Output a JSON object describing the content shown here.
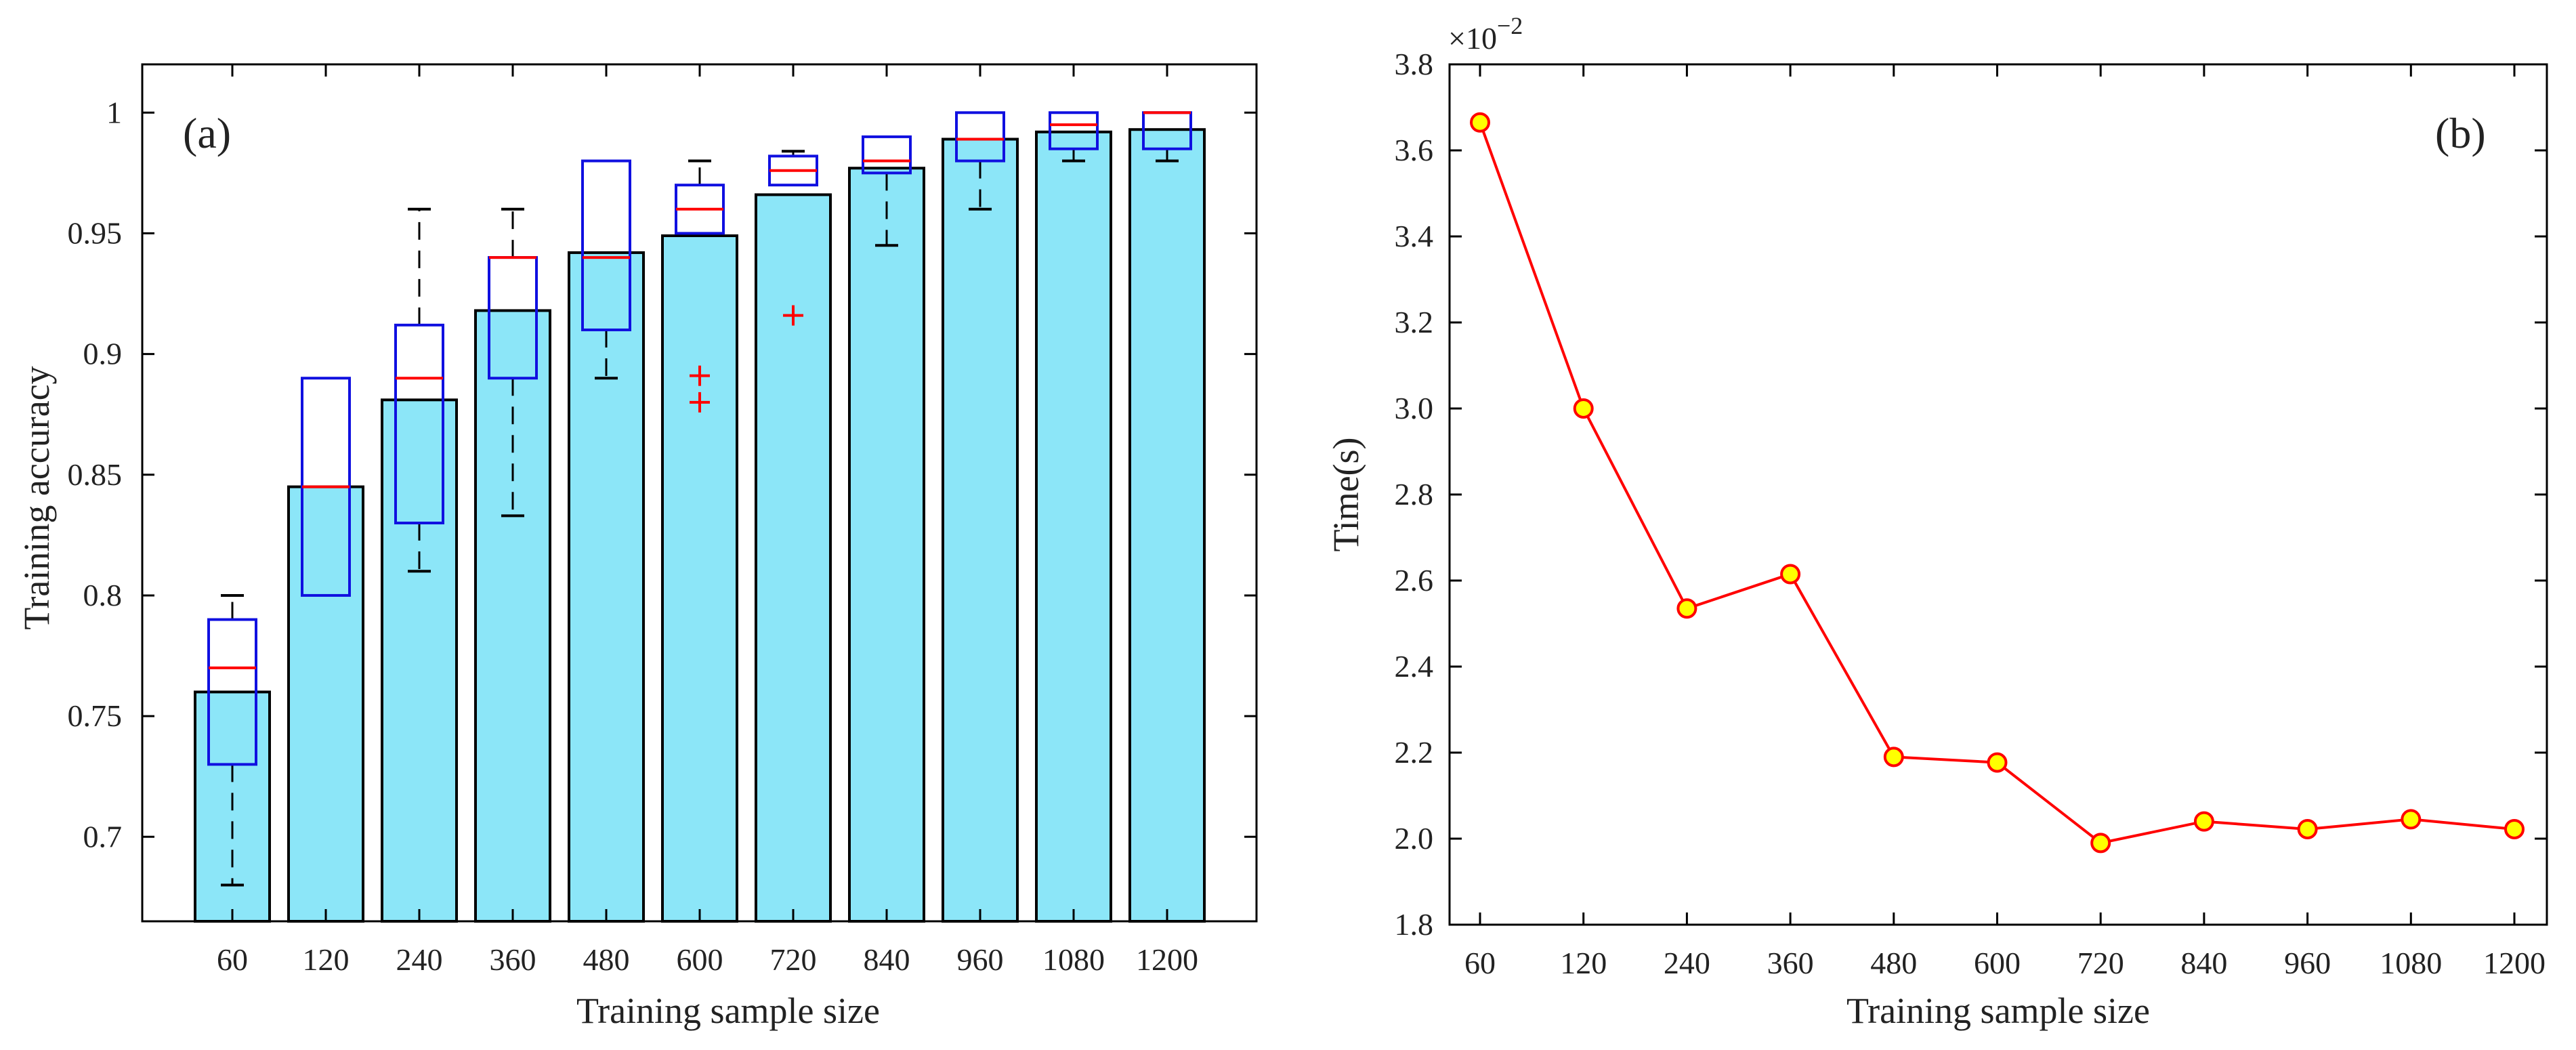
{
  "chart_data": [
    {
      "type": "bar+boxplot",
      "panel_label": "(a)",
      "xlabel": "Training sample size",
      "ylabel": "Training accuracy",
      "categories": [
        "60",
        "120",
        "240",
        "360",
        "480",
        "600",
        "720",
        "840",
        "960",
        "1080",
        "1200"
      ],
      "ylim": [
        0.665,
        1.02
      ],
      "yticks": [
        0.7,
        0.75,
        0.8,
        0.85,
        0.9,
        0.95,
        1
      ],
      "ytick_labels": [
        "0.7",
        "0.75",
        "0.8",
        "0.85",
        "0.9",
        "0.95",
        "1"
      ],
      "bar_values": [
        0.76,
        0.845,
        0.881,
        0.918,
        0.942,
        0.949,
        0.966,
        0.977,
        0.989,
        0.992,
        0.993
      ],
      "boxes": [
        {
          "q1": 0.73,
          "median": 0.77,
          "q3": 0.79,
          "whisker_low": 0.68,
          "whisker_high": 0.8,
          "outliers": []
        },
        {
          "q1": 0.8,
          "median": 0.845,
          "q3": 0.89,
          "whisker_low": 0.8,
          "whisker_high": 0.89,
          "outliers": []
        },
        {
          "q1": 0.83,
          "median": 0.89,
          "q3": 0.912,
          "whisker_low": 0.81,
          "whisker_high": 0.96,
          "outliers": []
        },
        {
          "q1": 0.89,
          "median": 0.94,
          "q3": 0.94,
          "whisker_low": 0.833,
          "whisker_high": 0.96,
          "outliers": []
        },
        {
          "q1": 0.91,
          "median": 0.94,
          "q3": 0.98,
          "whisker_low": 0.89,
          "whisker_high": 0.98,
          "outliers": []
        },
        {
          "q1": 0.95,
          "median": 0.96,
          "q3": 0.97,
          "whisker_low": 0.95,
          "whisker_high": 0.98,
          "outliers": [
            0.891,
            0.88
          ]
        },
        {
          "q1": 0.97,
          "median": 0.976,
          "q3": 0.982,
          "whisker_low": 0.97,
          "whisker_high": 0.984,
          "outliers": [
            0.916
          ]
        },
        {
          "q1": 0.975,
          "median": 0.98,
          "q3": 0.99,
          "whisker_low": 0.945,
          "whisker_high": 0.99,
          "outliers": []
        },
        {
          "q1": 0.98,
          "median": 0.989,
          "q3": 1.0,
          "whisker_low": 0.96,
          "whisker_high": 1.0,
          "outliers": []
        },
        {
          "q1": 0.985,
          "median": 0.995,
          "q3": 1.0,
          "whisker_low": 0.98,
          "whisker_high": 1.0,
          "outliers": []
        },
        {
          "q1": 0.985,
          "median": 1.0,
          "q3": 1.0,
          "whisker_low": 0.98,
          "whisker_high": 1.0,
          "outliers": []
        }
      ],
      "colors": {
        "bar_fill": "#8ce6f8",
        "bar_edge": "#000000",
        "box": "#1010e0",
        "median": "#ff0000",
        "whisker": "#000000",
        "outlier": "#ff0000"
      }
    },
    {
      "type": "line",
      "panel_label": "(b)",
      "xlabel": "Training sample size",
      "ylabel": "Time(s)",
      "exponent_label": "×10",
      "exponent_power": "−2",
      "categories": [
        "60",
        "120",
        "240",
        "360",
        "480",
        "600",
        "720",
        "840",
        "960",
        "1080",
        "1200"
      ],
      "values": [
        3.665,
        3.0,
        2.535,
        2.615,
        2.19,
        2.177,
        1.99,
        2.04,
        2.022,
        2.045,
        2.022
      ],
      "ylim": [
        1.8,
        3.8
      ],
      "yticks": [
        1.8,
        2.0,
        2.2,
        2.4,
        2.6,
        2.8,
        3.0,
        3.2,
        3.4,
        3.6,
        3.8
      ],
      "ytick_labels": [
        "1.8",
        "2.0",
        "2.2",
        "2.4",
        "2.6",
        "2.8",
        "3.0",
        "3.2",
        "3.4",
        "3.6",
        "3.8"
      ],
      "colors": {
        "line": "#ff0000",
        "marker_fill": "#ffff00",
        "marker_edge": "#ff0000"
      }
    }
  ]
}
